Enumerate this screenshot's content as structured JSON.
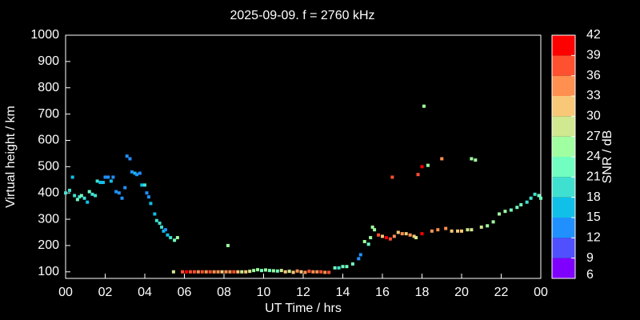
{
  "chart_data": {
    "type": "scatter",
    "title": "2025-09-09. f = 2760 kHz",
    "xlabel": "UT Time / hrs",
    "ylabel": "Virtual height / km",
    "xlim": [
      0,
      24
    ],
    "xticks": [
      {
        "value": 0,
        "label": "00"
      },
      {
        "value": 2,
        "label": "02"
      },
      {
        "value": 4,
        "label": "04"
      },
      {
        "value": 6,
        "label": "06"
      },
      {
        "value": 8,
        "label": "08"
      },
      10,
      12,
      14,
      16,
      18,
      20,
      22,
      {
        "value": 24,
        "label": "00"
      }
    ],
    "ylim": [
      75,
      1000
    ],
    "yticks": [
      100,
      200,
      300,
      400,
      500,
      600,
      700,
      800,
      900,
      1000
    ],
    "x": [
      0.0,
      0.2,
      0.35,
      0.45,
      0.6,
      0.7,
      0.8,
      0.95,
      1.1,
      1.2,
      1.35,
      1.5,
      1.6,
      1.75,
      1.9,
      2.0,
      2.15,
      2.3,
      2.4,
      2.55,
      2.7,
      2.85,
      3.0,
      3.1,
      3.25,
      3.35,
      3.5,
      3.6,
      3.75,
      3.85,
      4.0,
      4.1,
      4.2,
      4.3,
      4.5,
      4.6,
      4.75,
      4.85,
      4.95,
      5.05,
      5.15,
      5.3,
      5.45,
      5.5,
      5.65,
      5.9,
      6.1,
      6.3,
      6.5,
      6.7,
      6.9,
      7.1,
      7.3,
      7.5,
      7.7,
      7.9,
      8.1,
      8.3,
      8.5,
      8.7,
      8.9,
      9.1,
      9.3,
      9.5,
      9.7,
      9.9,
      10.1,
      10.3,
      10.5,
      10.7,
      10.9,
      11.1,
      11.3,
      11.5,
      11.7,
      11.9,
      12.1,
      12.3,
      12.5,
      12.7,
      12.9,
      13.1,
      13.3,
      8.2,
      13.6,
      13.8,
      14.0,
      14.2,
      14.5,
      14.8,
      14.9,
      15.1,
      15.3,
      15.4,
      15.5,
      15.6,
      15.8,
      16.0,
      16.2,
      16.4,
      16.5,
      16.6,
      16.8,
      17.0,
      17.2,
      17.4,
      17.6,
      17.7,
      17.8,
      18.0,
      18.0,
      18.1,
      18.3,
      18.5,
      18.8,
      19.0,
      19.2,
      19.5,
      19.8,
      20.0,
      20.3,
      20.5,
      20.5,
      20.7,
      21.0,
      21.3,
      21.6,
      21.9,
      22.2,
      22.5,
      22.8,
      23.0,
      23.3,
      23.5,
      23.7,
      23.9,
      24.0
    ],
    "y": [
      400,
      410,
      460,
      390,
      375,
      385,
      390,
      380,
      365,
      405,
      395,
      390,
      445,
      440,
      440,
      460,
      460,
      445,
      460,
      405,
      400,
      380,
      420,
      540,
      530,
      480,
      475,
      470,
      475,
      430,
      430,
      400,
      385,
      360,
      320,
      295,
      285,
      270,
      255,
      260,
      240,
      230,
      100,
      220,
      230,
      100,
      100,
      100,
      100,
      100,
      100,
      100,
      100,
      100,
      100,
      100,
      100,
      100,
      100,
      100,
      100,
      100,
      102,
      105,
      108,
      105,
      107,
      105,
      104,
      103,
      105,
      100,
      102,
      98,
      103,
      100,
      98,
      102,
      100,
      100,
      100,
      98,
      98,
      200,
      115,
      115,
      120,
      120,
      130,
      150,
      165,
      215,
      205,
      230,
      270,
      260,
      240,
      235,
      230,
      225,
      460,
      235,
      250,
      245,
      245,
      240,
      235,
      230,
      470,
      500,
      245,
      730,
      505,
      255,
      260,
      530,
      265,
      255,
      255,
      255,
      260,
      260,
      530,
      525,
      270,
      275,
      290,
      320,
      330,
      335,
      345,
      355,
      365,
      380,
      395,
      390,
      380
    ],
    "snr": [
      18,
      18,
      15,
      18,
      21,
      18,
      21,
      18,
      15,
      21,
      18,
      18,
      18,
      15,
      15,
      12,
      12,
      15,
      12,
      12,
      12,
      12,
      12,
      12,
      12,
      12,
      15,
      12,
      12,
      15,
      18,
      12,
      12,
      15,
      15,
      18,
      18,
      18,
      15,
      12,
      15,
      18,
      27,
      21,
      24,
      36,
      39,
      36,
      36,
      33,
      36,
      33,
      36,
      33,
      33,
      30,
      33,
      33,
      36,
      30,
      27,
      30,
      27,
      24,
      24,
      21,
      24,
      21,
      24,
      21,
      27,
      30,
      27,
      30,
      33,
      30,
      33,
      36,
      33,
      33,
      36,
      33,
      36,
      24,
      21,
      18,
      21,
      21,
      21,
      12,
      12,
      24,
      21,
      24,
      24,
      24,
      36,
      30,
      39,
      36,
      36,
      33,
      30,
      33,
      30,
      33,
      30,
      27,
      36,
      42,
      39,
      24,
      24,
      33,
      33,
      33,
      33,
      30,
      30,
      30,
      27,
      27,
      24,
      24,
      27,
      24,
      24,
      24,
      24,
      21,
      21,
      21,
      18,
      18,
      18,
      21,
      21
    ],
    "colorbar": {
      "label": "SNR / dB",
      "lim": [
        6,
        42
      ],
      "ticks": [
        6,
        9,
        12,
        15,
        18,
        21,
        24,
        27,
        30,
        33,
        36,
        39,
        42
      ],
      "colors": [
        "#8000ff",
        "#5050ff",
        "#2090ff",
        "#10c0e8",
        "#40e0d0",
        "#70ffc0",
        "#a0ffa0",
        "#d0e890",
        "#f8c878",
        "#ff9050",
        "#ff5030",
        "#ff0000"
      ]
    },
    "background": "#000000",
    "text_color": "#ffffff"
  }
}
